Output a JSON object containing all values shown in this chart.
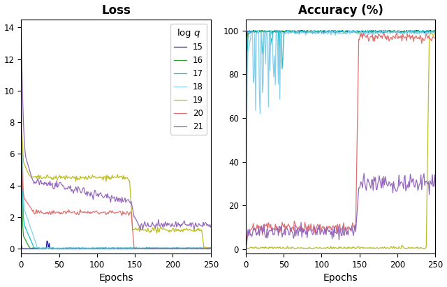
{
  "title_loss": "Loss",
  "title_acc": "Accuracy (%)",
  "xlabel": "Epochs",
  "n_epochs": 251,
  "colors": {
    "15": "#1f1f9c",
    "16": "#2ca02c",
    "17": "#17becf",
    "18": "#87ceeb",
    "19": "#bcbd22",
    "20": "#e07070",
    "21": "#9467bd"
  },
  "legend_title": "log $q$",
  "log_q_labels": [
    "15",
    "16",
    "17",
    "18",
    "19",
    "20",
    "21"
  ],
  "loss_ylim": [
    -0.3,
    14.5
  ],
  "acc_ylim": [
    -2,
    105
  ],
  "loss_yticks": [
    0,
    2,
    4,
    6,
    8,
    10,
    12,
    14
  ],
  "acc_yticks": [
    0,
    20,
    40,
    60,
    80,
    100
  ],
  "xticks": [
    0,
    50,
    100,
    150,
    200,
    250
  ]
}
